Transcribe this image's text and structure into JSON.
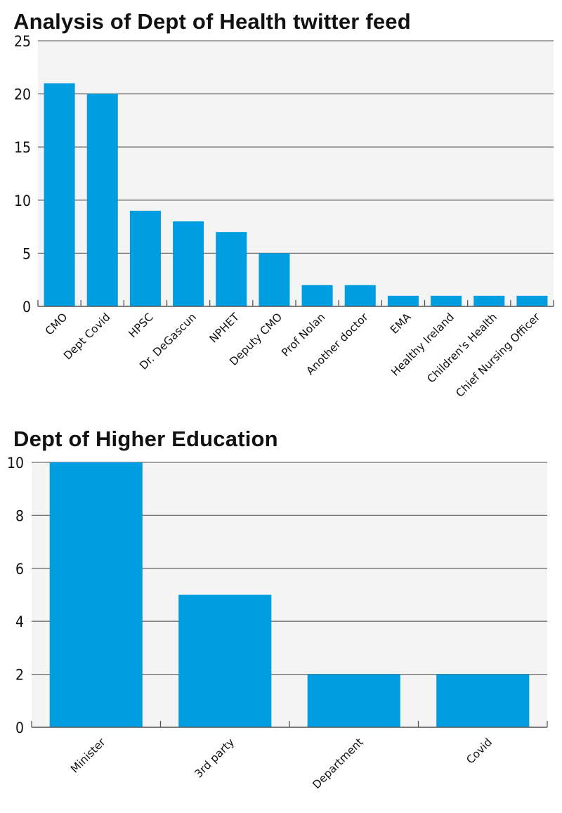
{
  "chart_data": [
    {
      "type": "bar",
      "title": "Analysis of Dept of Health twitter feed",
      "xlabel": "",
      "ylabel": "",
      "categories": [
        "CMO",
        "Dept Covid",
        "HPSC",
        "Dr. DeGascun",
        "NPHET",
        "Deputy CMO",
        "Prof Nolan",
        "Another doctor",
        "EMA",
        "Healthy Ireland",
        "Children's Health",
        "Chief Nursing Officer"
      ],
      "values": [
        21,
        20,
        9,
        8,
        7,
        5,
        2,
        2,
        1,
        1,
        1,
        1
      ],
      "ylim": [
        0,
        25
      ],
      "yticks": [
        "0",
        "5",
        "10",
        "15",
        "20",
        "25"
      ],
      "ytick_values": [
        0,
        5,
        10,
        15,
        20,
        25
      ],
      "grid": true,
      "bar_color": "#009ee0",
      "plot_bg": "#f4f4f4"
    },
    {
      "type": "bar",
      "title": "Dept of Higher Education",
      "xlabel": "",
      "ylabel": "",
      "categories": [
        "Minister",
        "3rd party",
        "Department",
        "Covid"
      ],
      "values": [
        10,
        5,
        2,
        2
      ],
      "ylim": [
        0,
        10
      ],
      "yticks": [
        "0",
        "2",
        "4",
        "6",
        "8",
        "10"
      ],
      "ytick_values": [
        0,
        2,
        4,
        6,
        8,
        10
      ],
      "grid": true,
      "bar_color": "#009ee0",
      "plot_bg": "#f4f4f4"
    }
  ]
}
